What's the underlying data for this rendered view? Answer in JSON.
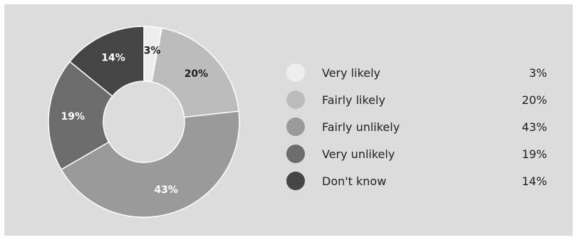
{
  "chart_data": {
    "type": "pie",
    "donut": true,
    "legend_position": "right",
    "categories": [
      "Very likely",
      "Fairly likely",
      "Fairly unlikely",
      "Very unlikely",
      "Don't know"
    ],
    "values": [
      3,
      20,
      43,
      19,
      14
    ],
    "value_labels": [
      "3%",
      "20%",
      "43%",
      "19%",
      "14%"
    ],
    "colors": [
      "#eeeeee",
      "#bcbcbc",
      "#9a9a9a",
      "#6c6c6c",
      "#454545"
    ],
    "label_colors": [
      "#222222",
      "#222222",
      "#ffffff",
      "#ffffff",
      "#ffffff"
    ]
  },
  "legend": {
    "items": [
      {
        "label": "Very likely",
        "value": "3%"
      },
      {
        "label": "Fairly likely",
        "value": "20%"
      },
      {
        "label": "Fairly unlikely",
        "value": "43%"
      },
      {
        "label": "Very unlikely",
        "value": "19%"
      },
      {
        "label": "Don't know",
        "value": "14%"
      }
    ]
  }
}
